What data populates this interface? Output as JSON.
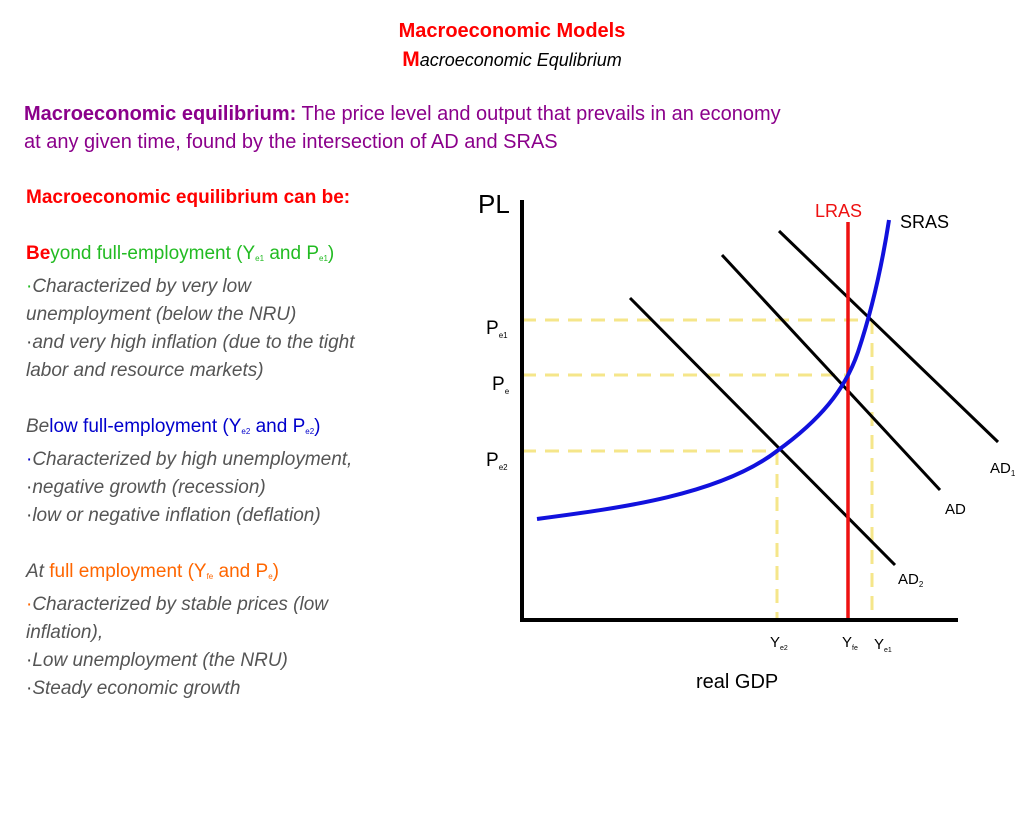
{
  "header": {
    "title": "Macroeconomic Models",
    "subtitle_initial": "M",
    "subtitle_rest": "acroeconomic Equlibrium"
  },
  "definition": {
    "term": "Macroeconomic equilibrium:",
    "line1": " The price level and output that prevails in an economy",
    "line2": "at any given time, found by the intersection of AD and SRAS"
  },
  "left_column": {
    "heading": "Macroeconomic equilibrium can be:",
    "beyond": {
      "prefix_red": "Be",
      "prefix_green": "yond full-employment (Y",
      "sub1": "e1",
      "mid": " and P",
      "sub2": "e1",
      "close": ")",
      "bullets": [
        "Characterized by very low",
        "unemployment (below the NRU)",
        "and very high inflation (due to the tight",
        "labor and resource markets)"
      ]
    },
    "below": {
      "prefix_gray": "Be",
      "prefix_blue": "low full-employment (Y",
      "sub1": "e2",
      "mid": " and P",
      "sub2": "e2",
      "close": ")",
      "bullets": [
        "Characterized by high unemployment,",
        "negative growth (recession)",
        "low or negative inflation (deflation)"
      ]
    },
    "at": {
      "prefix_gray": "At",
      "prefix_orange": " full employment (Y",
      "sub1": "fe",
      "mid": " and P",
      "sub2": "e",
      "close": ")",
      "bullets": [
        "Characterized by stable prices (low",
        "inflation),",
        "Low unemployment (the NRU)",
        "Steady economic growth"
      ]
    }
  },
  "graph": {
    "y_axis_label": "PL",
    "x_axis_label": "real GDP",
    "curves": {
      "lras": "LRAS",
      "sras": "SRAS",
      "ad1": "AD",
      "ad1_sub": "1",
      "ad": "AD",
      "ad2": "AD",
      "ad2_sub": "2"
    },
    "price_levels": [
      {
        "main": "P",
        "sub": "e1"
      },
      {
        "main": "P",
        "sub": "e"
      },
      {
        "main": "P",
        "sub": "e2"
      }
    ],
    "output_levels": [
      {
        "main": "Y",
        "sub": "e2"
      },
      {
        "main": "Y",
        "sub": "fe"
      },
      {
        "main": "Y",
        "sub": "e1"
      }
    ],
    "colors": {
      "axes": "#000000",
      "lras": "#ee1111",
      "sras": "#1111dd",
      "ad": "#000000",
      "guides": "#f5e68a"
    }
  }
}
